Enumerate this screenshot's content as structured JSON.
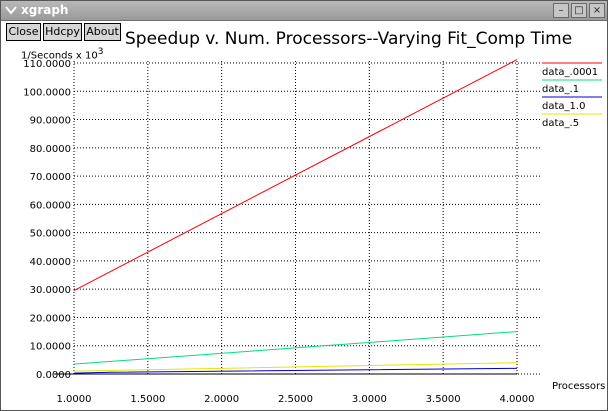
{
  "window": {
    "title": "xgraph",
    "controls": {
      "minimize": "–",
      "maximize": "□",
      "close": "×"
    }
  },
  "toolbar": {
    "close_label": "Close",
    "hdcpy_label": "Hdcpy",
    "about_label": "About"
  },
  "plot": {
    "title": "Speedup v. Num. Processors--Varying Fit_Comp Time",
    "y_unit_prefix": "1/Seconds x 10",
    "y_unit_exp": "3"
  },
  "chart_data": {
    "type": "line",
    "title": "Speedup v. Num. Processors--Varying Fit_Comp Time",
    "xlabel": "Processors",
    "ylabel": "1/Seconds x 10^3",
    "xlim": [
      1.0,
      4.0
    ],
    "ylim": [
      0.0,
      110.0
    ],
    "grid": true,
    "legend_position": "right",
    "x_ticks": [
      "1.0000",
      "1.5000",
      "2.0000",
      "2.5000",
      "3.0000",
      "3.5000",
      "4.0000"
    ],
    "y_ticks": [
      "0.0000",
      "10.0000",
      "20.0000",
      "30.0000",
      "40.0000",
      "50.0000",
      "60.0000",
      "70.0000",
      "80.0000",
      "90.0000",
      "100.0000",
      "110.0000"
    ],
    "series": [
      {
        "name": "data_.0001",
        "color": "#ff0000",
        "x": [
          1.0,
          4.0
        ],
        "y": [
          29.5,
          111.2
        ]
      },
      {
        "name": "data_.1",
        "color": "#00e07a",
        "x": [
          1.0,
          4.0
        ],
        "y": [
          3.5,
          15.0
        ]
      },
      {
        "name": "data_1.0",
        "color": "#0000d0",
        "x": [
          1.0,
          1.25,
          4.0
        ],
        "y": [
          0.3,
          0.6,
          2.0
        ]
      },
      {
        "name": "data_.5",
        "color": "#e6e600",
        "x": [
          1.0,
          4.0
        ],
        "y": [
          1.0,
          4.0
        ]
      }
    ]
  }
}
